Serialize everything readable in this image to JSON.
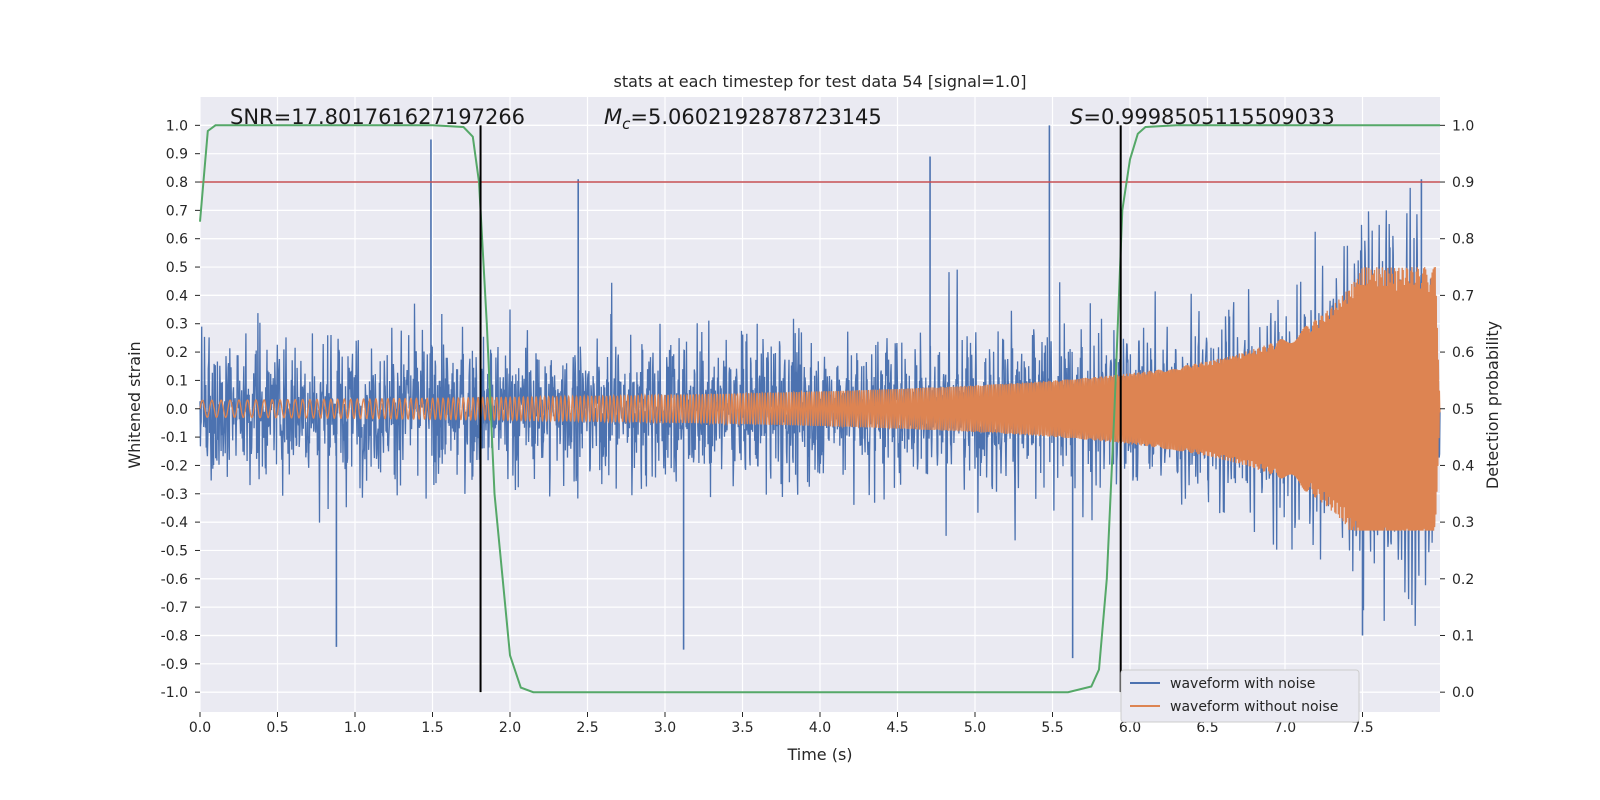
{
  "chart_data": {
    "type": "line",
    "title": "stats at each timestep for test data 54 [signal=1.0]",
    "xlabel": "Time (s)",
    "ylabel_left": "Whitened strain",
    "ylabel_right": "Detection probability",
    "xlim": [
      0.0,
      8.0
    ],
    "ylim_left": [
      -1.07,
      1.1
    ],
    "ylim_right": [
      0.0,
      1.0
    ],
    "x_ticks": [
      "0.0",
      "0.5",
      "1.0",
      "1.5",
      "2.0",
      "2.5",
      "3.0",
      "3.5",
      "4.0",
      "4.5",
      "5.0",
      "5.5",
      "6.0",
      "6.5",
      "7.0",
      "7.5"
    ],
    "y_left_ticks": [
      "1.0",
      "0.9",
      "0.8",
      "0.7",
      "0.6",
      "0.5",
      "0.4",
      "0.3",
      "0.2",
      "0.1",
      "0.0",
      "-0.1",
      "-0.2",
      "-0.3",
      "-0.4",
      "-0.5",
      "-0.6",
      "-0.7",
      "-0.8",
      "-0.9",
      "-1.0"
    ],
    "y_right_ticks": [
      "1.0",
      "0.9",
      "0.8",
      "0.7",
      "0.6",
      "0.5",
      "0.4",
      "0.3",
      "0.2",
      "0.1",
      "0.0"
    ],
    "grid": true,
    "legend_position": "bottom-right",
    "colors": {
      "noise": "#4c72b0",
      "signal": "#dd8452",
      "probability": "#55a868",
      "threshold": "#c44e52",
      "markers": "#000000",
      "background": "#eaeaf2",
      "grid": "#ffffff"
    },
    "annotations": {
      "snr": "SNR=17.801761627197266",
      "mc_symbol": "M",
      "mc_sub": "c",
      "mc_value": "=5.0602192878723145",
      "s_symbol": "S",
      "s_value": "=0.9998505115509033"
    },
    "threshold_probability": 0.9,
    "detection_boundaries": [
      1.81,
      5.94
    ],
    "series": [
      {
        "name": "waveform with noise",
        "role": "noise",
        "typical_amplitude": 0.45,
        "notable_peaks": [
          {
            "x": 1.49,
            "y": 0.95
          },
          {
            "x": 2.44,
            "y": 0.81
          },
          {
            "x": 4.71,
            "y": 0.89
          },
          {
            "x": 5.48,
            "y": 1.0
          },
          {
            "x": 7.88,
            "y": 0.81
          },
          {
            "x": 0.88,
            "y": -0.84
          },
          {
            "x": 3.12,
            "y": -0.85
          },
          {
            "x": 5.63,
            "y": -0.88
          },
          {
            "x": 7.5,
            "y": -0.8
          }
        ]
      },
      {
        "name": "waveform without noise",
        "role": "signal",
        "chirp_start_amplitude": 0.03,
        "chirp_peak_x": 7.93,
        "chirp_peak_y": 0.5,
        "chirp_min_y": -0.43
      },
      {
        "name": "detection probability",
        "role": "probability",
        "x": [
          0.0,
          0.05,
          0.1,
          0.3,
          1.0,
          1.5,
          1.7,
          1.76,
          1.8,
          1.85,
          1.9,
          2.0,
          2.07,
          2.15,
          3.0,
          4.0,
          5.0,
          5.6,
          5.75,
          5.8,
          5.85,
          5.9,
          5.95,
          6.0,
          6.05,
          6.1,
          6.3,
          7.5,
          8.0
        ],
        "y": [
          0.83,
          0.99,
          1.0,
          1.0,
          1.0,
          1.0,
          0.997,
          0.98,
          0.9,
          0.65,
          0.35,
          0.065,
          0.008,
          0.0,
          0.0,
          0.0,
          0.0,
          0.0,
          0.01,
          0.04,
          0.2,
          0.5,
          0.85,
          0.94,
          0.985,
          0.997,
          1.0,
          1.0,
          1.0
        ]
      }
    ],
    "legend": [
      "waveform with noise",
      "waveform without noise"
    ]
  }
}
